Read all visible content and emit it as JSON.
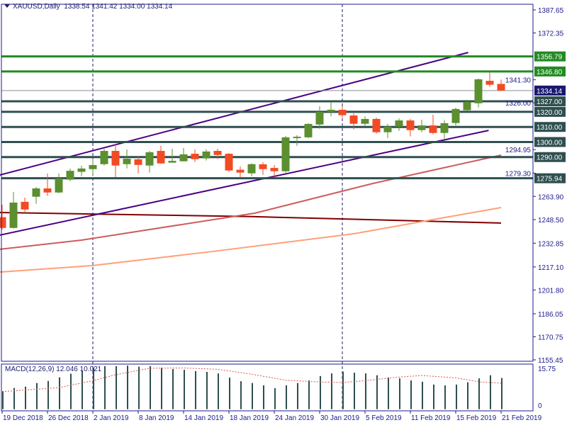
{
  "header": {
    "symbol": "XAUUSD,Daily",
    "ohlc": "1338.54 1341.42 1334.00 1334.14"
  },
  "macd": {
    "label": "MACD(12,26,9) 12.046 10.021",
    "axis_labels": [
      "15.75",
      "0"
    ]
  },
  "colors": {
    "bull": "#5b8f2f",
    "bear": "#f24b23",
    "resistance": "#228b22",
    "level": "#2f4f4f",
    "trend": "#4b0082",
    "axis": "#1b1b8c",
    "current": "#191970"
  },
  "chart_data": [
    {
      "type": "candlestick",
      "price_axis_ticks": [
        "1387.65",
        "1372.35",
        "1341.30",
        "1326.00",
        "1294.95",
        "1279.30",
        "1263.90",
        "1248.50",
        "1232.85",
        "1217.10",
        "1201.80",
        "1186.05",
        "1170.75",
        "1155.45"
      ],
      "ylim": [
        1155.45,
        1387.65
      ],
      "date_labels": [
        {
          "i": 0,
          "text": "19 Dec 2018"
        },
        {
          "i": 4,
          "text": "26 Dec 2018"
        },
        {
          "i": 8,
          "text": "2 Jan 2019"
        },
        {
          "i": 12,
          "text": "8 Jan 2019"
        },
        {
          "i": 16,
          "text": "14 Jan 2019"
        },
        {
          "i": 20,
          "text": "18 Jan 2019"
        },
        {
          "i": 24,
          "text": "24 Jan 2019"
        },
        {
          "i": 28,
          "text": "30 Jan 2019"
        },
        {
          "i": 32,
          "text": "5 Feb 2019"
        },
        {
          "i": 36,
          "text": "11 Feb 2019"
        },
        {
          "i": 40,
          "text": "15 Feb 2019"
        },
        {
          "i": 44,
          "text": "21 Feb 2019"
        }
      ],
      "period_separators": [
        8,
        30
      ],
      "ohlc": [
        [
          1250.1,
          1258.4,
          1241.9,
          1243.0
        ],
        [
          1243.0,
          1266.9,
          1242.6,
          1259.8
        ],
        [
          1260.3,
          1263.1,
          1253.8,
          1255.2
        ],
        [
          1263.7,
          1270.2,
          1259.0,
          1269.2
        ],
        [
          1269.2,
          1279.1,
          1264.2,
          1266.5
        ],
        [
          1266.5,
          1279.1,
          1266.0,
          1275.8
        ],
        [
          1275.0,
          1282.4,
          1274.0,
          1280.9
        ],
        [
          1280.2,
          1284.3,
          1277.3,
          1282.4
        ],
        [
          1282.0,
          1288.9,
          1278.3,
          1284.7
        ],
        [
          1285.3,
          1295.5,
          1284.4,
          1294.1
        ],
        [
          1294.1,
          1298.8,
          1276.4,
          1284.4
        ],
        [
          1285.3,
          1295.1,
          1282.5,
          1288.9
        ],
        [
          1288.5,
          1290.4,
          1279.2,
          1284.8
        ],
        [
          1284.4,
          1294.1,
          1279.7,
          1293.2
        ],
        [
          1294.1,
          1297.4,
          1285.6,
          1285.8
        ],
        [
          1286.3,
          1295.5,
          1286.3,
          1287.5
        ],
        [
          1287.2,
          1296.0,
          1287.2,
          1291.8
        ],
        [
          1292.2,
          1295.1,
          1286.7,
          1288.6
        ],
        [
          1289.1,
          1295.1,
          1287.7,
          1293.7
        ],
        [
          1294.1,
          1295.5,
          1288.6,
          1291.4
        ],
        [
          1292.2,
          1292.7,
          1280.2,
          1281.1
        ],
        [
          1281.6,
          1283.8,
          1276.4,
          1279.7
        ],
        [
          1279.2,
          1285.8,
          1277.3,
          1285.3
        ],
        [
          1285.2,
          1286.6,
          1278.3,
          1282.0
        ],
        [
          1282.8,
          1284.7,
          1276.4,
          1280.6
        ],
        [
          1280.6,
          1304.0,
          1279.7,
          1303.1
        ],
        [
          1302.6,
          1304.5,
          1297.5,
          1303.5
        ],
        [
          1303.1,
          1312.4,
          1302.6,
          1312.0
        ],
        [
          1311.6,
          1323.7,
          1308.8,
          1320.0
        ],
        [
          1320.0,
          1326.6,
          1317.1,
          1321.4
        ],
        [
          1321.4,
          1323.7,
          1315.9,
          1317.8
        ],
        [
          1317.6,
          1319.0,
          1308.4,
          1312.1
        ],
        [
          1312.1,
          1317.1,
          1310.2,
          1315.3
        ],
        [
          1315.3,
          1316.2,
          1305.5,
          1306.5
        ],
        [
          1306.5,
          1312.0,
          1302.7,
          1310.2
        ],
        [
          1310.2,
          1315.7,
          1307.4,
          1314.3
        ],
        [
          1314.3,
          1315.3,
          1303.7,
          1307.9
        ],
        [
          1307.9,
          1314.8,
          1306.5,
          1311.0
        ],
        [
          1311.0,
          1318.1,
          1305.1,
          1306.0
        ],
        [
          1306.0,
          1314.3,
          1302.2,
          1312.5
        ],
        [
          1312.6,
          1322.8,
          1311.0,
          1321.9
        ],
        [
          1321.1,
          1328.0,
          1320.6,
          1326.6
        ],
        [
          1325.7,
          1342.1,
          1322.9,
          1341.6
        ],
        [
          1340.6,
          1346.3,
          1336.6,
          1338.0
        ],
        [
          1338.54,
          1341.42,
          1334.0,
          1334.14
        ]
      ],
      "levels": [
        {
          "price": 1356.79,
          "label": "1356.79",
          "kind": "resistance"
        },
        {
          "price": 1346.8,
          "label": "1346.80",
          "kind": "resistance"
        },
        {
          "price": 1327.0,
          "label": "1327.00",
          "kind": "level"
        },
        {
          "price": 1320.0,
          "label": "1320.00",
          "kind": "level"
        },
        {
          "price": 1310.0,
          "label": "1310.00",
          "kind": "level"
        },
        {
          "price": 1300.0,
          "label": "1300.00",
          "kind": "level"
        },
        {
          "price": 1290.0,
          "label": "1290.00",
          "kind": "level"
        },
        {
          "price": 1275.94,
          "label": "1275.94",
          "kind": "level"
        }
      ],
      "current_price": {
        "price": 1334.14,
        "label": "1334.14"
      },
      "trendlines": [
        {
          "from": [
            -0.2,
            1278.1
          ],
          "to": [
            41.1,
            1359.4
          ]
        },
        {
          "from": [
            -0.2,
            1238.2
          ],
          "to": [
            42.9,
            1307.7
          ]
        }
      ],
      "moving_averages": [
        {
          "color": "#800000",
          "points": [
            [
              -0.2,
              1253.2
            ],
            [
              22,
              1250.5
            ],
            [
              44,
              1246.2
            ]
          ]
        },
        {
          "color": "#cd5c5c",
          "points": [
            [
              -0.2,
              1228.8
            ],
            [
              7,
              1234.9
            ],
            [
              22.3,
              1252.8
            ],
            [
              32.7,
              1272.5
            ],
            [
              44,
              1291.3
            ]
          ]
        },
        {
          "color": "#ffa07a",
          "points": [
            [
              -0.2,
              1213.7
            ],
            [
              8,
              1218
            ],
            [
              18.6,
              1227.4
            ],
            [
              31,
              1239.1
            ],
            [
              37.3,
              1247.6
            ],
            [
              44,
              1256.5
            ]
          ]
        }
      ]
    },
    {
      "type": "bar+line",
      "title": "MACD(12,26,9)",
      "ylim": [
        0,
        15.75
      ],
      "histogram": [
        7.0,
        8.2,
        8.7,
        10.1,
        10.9,
        12.3,
        13.7,
        14.7,
        16.0,
        16.6,
        16.6,
        16.8,
        16.4,
        16.6,
        16.0,
        15.5,
        15.2,
        14.7,
        14.4,
        13.8,
        12.2,
        10.8,
        10.1,
        9.2,
        8.1,
        9.2,
        10.1,
        11.1,
        12.8,
        13.8,
        14.5,
        14.1,
        13.8,
        13.1,
        12.2,
        11.9,
        11.1,
        10.6,
        9.5,
        9.2,
        9.5,
        10.4,
        11.9,
        13.1,
        12.046
      ],
      "signal_points": [
        [
          0,
          6.8
        ],
        [
          5,
          8.3
        ],
        [
          8,
          11.0
        ],
        [
          10,
          13.3
        ],
        [
          13,
          15.8
        ],
        [
          16,
          15.9
        ],
        [
          19,
          15.4
        ],
        [
          22,
          13.5
        ],
        [
          25,
          11.2
        ],
        [
          28,
          10.5
        ],
        [
          30,
          10.3
        ],
        [
          32,
          11.0
        ],
        [
          35,
          12.4
        ],
        [
          37,
          13.0
        ],
        [
          40,
          12.1
        ],
        [
          42,
          10.6
        ],
        [
          44,
          10.021
        ]
      ]
    }
  ]
}
